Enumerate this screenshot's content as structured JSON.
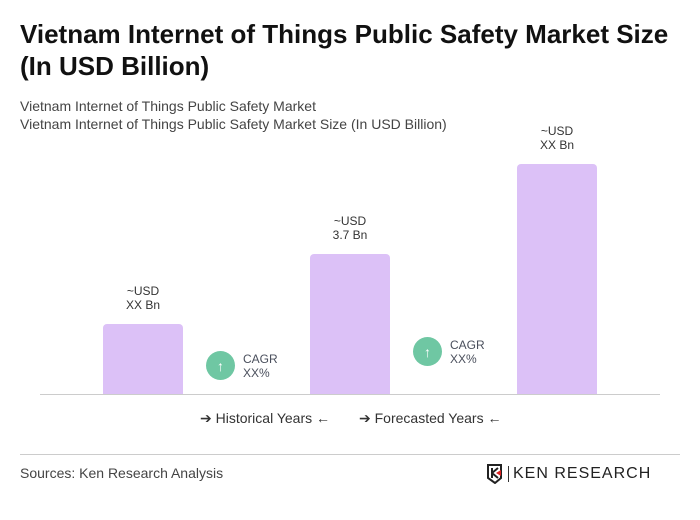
{
  "title": "Vietnam Internet of Things Public Safety Market Size (In USD Billion)",
  "subtitle1": "Vietnam Internet of Things Public Safety Market",
  "subtitle2": "Vietnam Internet of Things Public Safety Market Size (In USD Billion)",
  "chart_data": {
    "type": "bar",
    "categories": [
      "",
      "",
      ""
    ],
    "values": [
      1.85,
      3.7,
      6.1
    ],
    "data_labels": [
      [
        "~USD",
        "XX Bn"
      ],
      [
        "~USD",
        "3.7 Bn"
      ],
      [
        "~USD",
        "XX Bn"
      ]
    ],
    "bar_color": "#dcc1f7",
    "cagr": [
      {
        "label": "CAGR",
        "value": "XX%"
      },
      {
        "label": "CAGR",
        "value": "XX%"
      }
    ],
    "cagr_color": "#6fc7a3",
    "legend": [
      "Historical Years",
      "Forecasted Years"
    ]
  },
  "source": "Sources: Ken Research Analysis",
  "logo_text": "KEN RESEARCH"
}
